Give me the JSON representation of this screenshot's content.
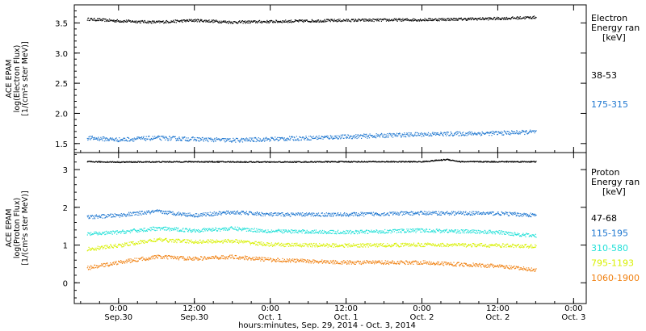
{
  "xlabel": "hours:minutes, Sep. 29, 2014 - Oct.  3, 2014",
  "x_ticks": [
    {
      "l1": "0:00",
      "l2": "Sep.30",
      "hour": 0
    },
    {
      "l1": "12:00",
      "l2": "Sep.30",
      "hour": 12
    },
    {
      "l1": "0:00",
      "l2": "Oct. 1",
      "hour": 24
    },
    {
      "l1": "12:00",
      "l2": "Oct. 1",
      "hour": 36
    },
    {
      "l1": "0:00",
      "l2": "Oct. 2",
      "hour": 48
    },
    {
      "l1": "12:00",
      "l2": "Oct. 2",
      "hour": 60
    },
    {
      "l1": "0:00",
      "l2": "Oct. 3",
      "hour": 72
    }
  ],
  "chart_data": [
    {
      "type": "scatter",
      "ylabel_lines": [
        "ACE EPAM",
        "log(Electron Flux)",
        "[1/(cm²s ster MeV)]"
      ],
      "legend_title": [
        "Electron",
        "Energy ran",
        "[keV]"
      ],
      "ylim": [
        1.35,
        3.8
      ],
      "xlim_hours": [
        -7,
        74
      ],
      "yticks": [
        "1.5",
        "2.0",
        "2.5",
        "3.0",
        "3.5"
      ],
      "ytick_values": [
        1.5,
        2.0,
        2.5,
        3.0,
        3.5
      ],
      "series": [
        {
          "name": "38-53",
          "color": "#000000",
          "points": [
            [
              -5,
              3.57
            ],
            [
              0,
              3.54
            ],
            [
              6,
              3.52
            ],
            [
              12,
              3.55
            ],
            [
              18,
              3.52
            ],
            [
              24,
              3.53
            ],
            [
              36,
              3.55
            ],
            [
              48,
              3.56
            ],
            [
              60,
              3.58
            ],
            [
              66,
              3.6
            ]
          ]
        },
        {
          "name": "175-315",
          "color": "#1f77d0",
          "points": [
            [
              -5,
              1.6
            ],
            [
              0,
              1.57
            ],
            [
              6,
              1.6
            ],
            [
              12,
              1.58
            ],
            [
              18,
              1.56
            ],
            [
              24,
              1.58
            ],
            [
              36,
              1.62
            ],
            [
              48,
              1.66
            ],
            [
              60,
              1.68
            ],
            [
              66,
              1.7
            ]
          ]
        }
      ]
    },
    {
      "type": "scatter",
      "ylabel_lines": [
        "ACE EPAM",
        "log(Proton Flux)",
        "[1/(cm²s ster MeV)]"
      ],
      "legend_title": [
        "Proton",
        "Energy ran",
        "[keV]"
      ],
      "ylim": [
        -0.55,
        3.45
      ],
      "xlim_hours": [
        -7,
        74
      ],
      "yticks": [
        "0",
        "1",
        "2",
        "3"
      ],
      "ytick_values": [
        0,
        1,
        2,
        3
      ],
      "series": [
        {
          "name": "47-68",
          "color": "#000000",
          "points": [
            [
              -5,
              3.22
            ],
            [
              0,
              3.21
            ],
            [
              12,
              3.22
            ],
            [
              24,
              3.21
            ],
            [
              36,
              3.22
            ],
            [
              48,
              3.22
            ],
            [
              52,
              3.28
            ],
            [
              54,
              3.22
            ],
            [
              66,
              3.22
            ]
          ]
        },
        {
          "name": "115-195",
          "color": "#1f77d0",
          "points": [
            [
              -5,
              1.75
            ],
            [
              0,
              1.8
            ],
            [
              6,
              1.9
            ],
            [
              12,
              1.8
            ],
            [
              18,
              1.88
            ],
            [
              24,
              1.82
            ],
            [
              36,
              1.82
            ],
            [
              48,
              1.86
            ],
            [
              60,
              1.85
            ],
            [
              66,
              1.8
            ]
          ]
        },
        {
          "name": "310-580",
          "color": "#22e0d8",
          "points": [
            [
              -5,
              1.3
            ],
            [
              0,
              1.35
            ],
            [
              6,
              1.45
            ],
            [
              12,
              1.4
            ],
            [
              18,
              1.45
            ],
            [
              24,
              1.38
            ],
            [
              36,
              1.35
            ],
            [
              48,
              1.4
            ],
            [
              60,
              1.35
            ],
            [
              66,
              1.25
            ]
          ]
        },
        {
          "name": "795-1193",
          "color": "#d8f000",
          "points": [
            [
              -5,
              0.9
            ],
            [
              0,
              1.0
            ],
            [
              6,
              1.15
            ],
            [
              12,
              1.1
            ],
            [
              18,
              1.12
            ],
            [
              24,
              1.02
            ],
            [
              36,
              1.0
            ],
            [
              48,
              1.02
            ],
            [
              60,
              1.0
            ],
            [
              66,
              0.98
            ]
          ]
        },
        {
          "name": "1060-1900",
          "color": "#f08010",
          "points": [
            [
              -5,
              0.4
            ],
            [
              0,
              0.55
            ],
            [
              6,
              0.7
            ],
            [
              12,
              0.65
            ],
            [
              18,
              0.7
            ],
            [
              24,
              0.62
            ],
            [
              36,
              0.55
            ],
            [
              48,
              0.55
            ],
            [
              60,
              0.45
            ],
            [
              66,
              0.35
            ]
          ]
        }
      ]
    }
  ]
}
